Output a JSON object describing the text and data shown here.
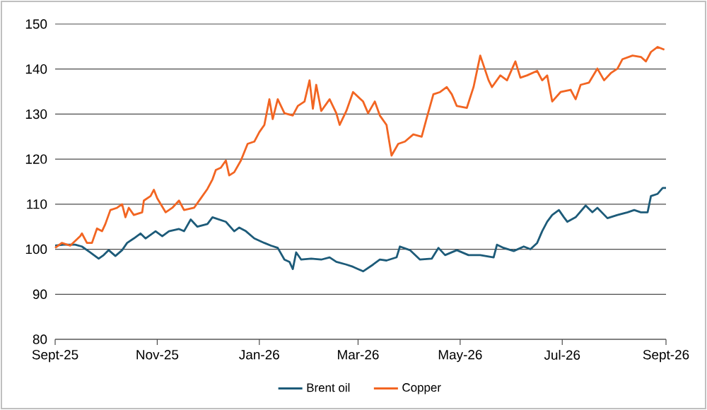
{
  "chart_data": {
    "type": "line",
    "xlim": [
      "2025-09-01",
      "2026-09-01"
    ],
    "xticks": [
      {
        "value": "2025-09-01",
        "label": "Sept-25"
      },
      {
        "value": "2025-11-01",
        "label": "Nov-25"
      },
      {
        "value": "2026-01-01",
        "label": "Jan-26"
      },
      {
        "value": "2026-03-01",
        "label": "Mar-26"
      },
      {
        "value": "2026-05-01",
        "label": "May-26"
      },
      {
        "value": "2026-07-01",
        "label": "Jul-26"
      },
      {
        "value": "2026-09-01",
        "label": "Sept-26"
      }
    ],
    "ylim": [
      80,
      150
    ],
    "yticks": [
      80,
      90,
      100,
      110,
      120,
      130,
      140,
      150
    ],
    "grid": "y",
    "legend": "bottom",
    "marker": "none",
    "line_style": "solid",
    "series": [
      {
        "name": "Brent oil",
        "color": "#1d5b79",
        "x": [
          "2025-09-01",
          "2025-09-06",
          "2025-09-13",
          "2025-09-17",
          "2025-09-22",
          "2025-09-27",
          "2025-09-30",
          "2025-10-03",
          "2025-10-07",
          "2025-10-11",
          "2025-10-14",
          "2025-10-18",
          "2025-10-22",
          "2025-10-25",
          "2025-10-31",
          "2025-11-04",
          "2025-11-08",
          "2025-11-14",
          "2025-11-17",
          "2025-11-21",
          "2025-11-25",
          "2025-12-01",
          "2025-12-04",
          "2025-12-08",
          "2025-12-12",
          "2025-12-17",
          "2025-12-20",
          "2025-12-24",
          "2025-12-29",
          "2026-01-04",
          "2026-01-08",
          "2026-01-12",
          "2026-01-16",
          "2026-01-19",
          "2026-01-21",
          "2026-01-23",
          "2026-01-26",
          "2026-02-01",
          "2026-02-07",
          "2026-02-12",
          "2026-02-16",
          "2026-02-22",
          "2026-02-26",
          "2026-03-04",
          "2026-03-10",
          "2026-03-14",
          "2026-03-18",
          "2026-03-24",
          "2026-03-26",
          "2026-04-01",
          "2026-04-07",
          "2026-04-14",
          "2026-04-18",
          "2026-04-22",
          "2026-04-29",
          "2026-05-06",
          "2026-05-13",
          "2026-05-21",
          "2026-05-23",
          "2026-05-27",
          "2026-06-02",
          "2026-06-08",
          "2026-06-12",
          "2026-06-16",
          "2026-06-19",
          "2026-06-22",
          "2026-06-25",
          "2026-06-29",
          "2026-07-02",
          "2026-07-04",
          "2026-07-09",
          "2026-07-15",
          "2026-07-19",
          "2026-07-22",
          "2026-07-28",
          "2026-08-03",
          "2026-08-09",
          "2026-08-13",
          "2026-08-17",
          "2026-08-21",
          "2026-08-23",
          "2026-08-27",
          "2026-08-30",
          "2026-09-01"
        ],
        "values": [
          100.8,
          101,
          101,
          100.6,
          99.3,
          97.9,
          98.7,
          99.8,
          98.5,
          99.8,
          101.4,
          102.4,
          103.5,
          102.4,
          104,
          102.9,
          104,
          104.5,
          104,
          106.6,
          105,
          105.6,
          107.1,
          106.6,
          106.1,
          104,
          104.8,
          104,
          102.4,
          101.4,
          100.8,
          100.3,
          97.7,
          97.2,
          95.6,
          99.3,
          97.7,
          97.9,
          97.7,
          98.2,
          97.2,
          96.6,
          96.1,
          95.1,
          96.6,
          97.7,
          97.5,
          98.2,
          100.6,
          99.8,
          97.7,
          97.9,
          100.3,
          98.7,
          99.8,
          98.7,
          98.7,
          98.2,
          101,
          100.3,
          99.6,
          100.6,
          100,
          101.4,
          104,
          106.1,
          107.6,
          108.7,
          107.1,
          106.1,
          107.1,
          109.7,
          108.2,
          109.2,
          106.9,
          107.6,
          108.2,
          108.7,
          108.2,
          108.2,
          111.8,
          112.3,
          113.6,
          113.6
        ]
      },
      {
        "name": "Copper",
        "color": "#f26522",
        "x": [
          "2025-09-01",
          "2025-09-05",
          "2025-09-10",
          "2025-09-16",
          "2025-09-17",
          "2025-09-20",
          "2025-09-23",
          "2025-09-26",
          "2025-09-29",
          "2025-10-01",
          "2025-10-04",
          "2025-10-08",
          "2025-10-11",
          "2025-10-13",
          "2025-10-15",
          "2025-10-18",
          "2025-10-23",
          "2025-10-24",
          "2025-10-28",
          "2025-10-30",
          "2025-11-01",
          "2025-11-06",
          "2025-11-10",
          "2025-11-14",
          "2025-11-17",
          "2025-11-23",
          "2025-11-27",
          "2025-12-01",
          "2025-12-04",
          "2025-12-06",
          "2025-12-09",
          "2025-12-12",
          "2025-12-14",
          "2025-12-17",
          "2025-12-21",
          "2025-12-25",
          "2025-12-29",
          "2026-01-01",
          "2026-01-04",
          "2026-01-07",
          "2026-01-09",
          "2026-01-12",
          "2026-01-16",
          "2026-01-21",
          "2026-01-24",
          "2026-01-28",
          "2026-01-31",
          "2026-02-02",
          "2026-02-04",
          "2026-02-07",
          "2026-02-12",
          "2026-02-16",
          "2026-02-18",
          "2026-02-22",
          "2026-02-26",
          "2026-03-04",
          "2026-03-07",
          "2026-03-11",
          "2026-03-14",
          "2026-03-18",
          "2026-03-21",
          "2026-03-25",
          "2026-03-29",
          "2026-04-03",
          "2026-04-08",
          "2026-04-11",
          "2026-04-15",
          "2026-04-19",
          "2026-04-23",
          "2026-04-26",
          "2026-04-29",
          "2026-05-05",
          "2026-05-09",
          "2026-05-13",
          "2026-05-18",
          "2026-05-20",
          "2026-05-25",
          "2026-05-29",
          "2026-06-03",
          "2026-06-06",
          "2026-06-10",
          "2026-06-16",
          "2026-06-19",
          "2026-06-22",
          "2026-06-25",
          "2026-06-30",
          "2026-07-06",
          "2026-07-09",
          "2026-07-12",
          "2026-07-17",
          "2026-07-22",
          "2026-07-26",
          "2026-07-30",
          "2026-08-03",
          "2026-08-06",
          "2026-08-12",
          "2026-08-17",
          "2026-08-20",
          "2026-08-23",
          "2026-08-27",
          "2026-08-31"
        ],
        "values": [
          100.3,
          101.4,
          100.8,
          102.9,
          103.5,
          101.4,
          101.4,
          104.6,
          104,
          105.6,
          108.7,
          109.2,
          110,
          107.1,
          109.2,
          107.6,
          108.2,
          110.8,
          111.8,
          113.2,
          111.3,
          108.2,
          109.2,
          110.8,
          108.7,
          109.2,
          111.3,
          113.4,
          115.5,
          117.6,
          118.1,
          119.7,
          116.4,
          117.1,
          119.7,
          123.4,
          123.9,
          126,
          127.6,
          133.3,
          128.9,
          133.3,
          130.2,
          129.7,
          131.8,
          132.8,
          137.5,
          131.2,
          136.5,
          130.7,
          133.3,
          130.2,
          127.6,
          130.7,
          134.9,
          132.8,
          130.2,
          132.8,
          129.7,
          127.6,
          120.8,
          123.4,
          123.9,
          125.5,
          125,
          129.1,
          134.4,
          134.9,
          136,
          134.4,
          131.8,
          131.4,
          136,
          143,
          137.5,
          136,
          138.6,
          137.5,
          141.7,
          138.1,
          138.6,
          139.6,
          137.5,
          138.6,
          132.8,
          134.9,
          135.4,
          133.3,
          136.5,
          137,
          140.1,
          137.5,
          139.1,
          140.1,
          142.2,
          143,
          142.7,
          141.7,
          143.8,
          144.9,
          144.3
        ]
      }
    ]
  }
}
